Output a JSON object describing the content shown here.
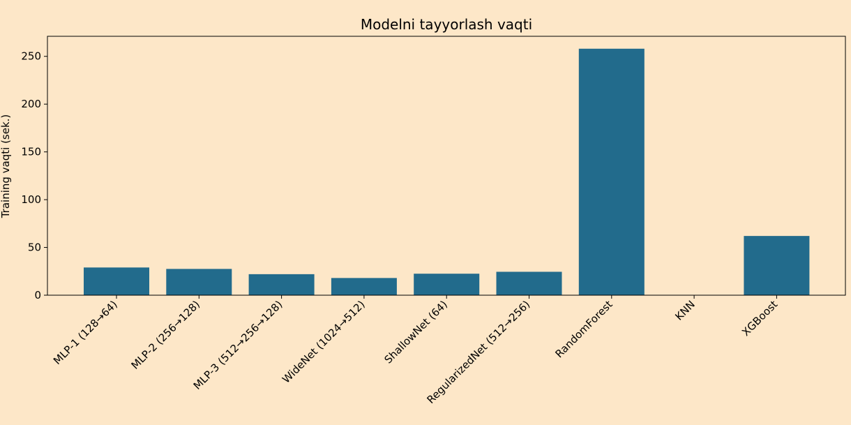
{
  "chart_data": {
    "type": "bar",
    "title": "Modelni tayyorlash vaqti",
    "xlabel": "",
    "ylabel": "Training vaqti (sek.)",
    "categories": [
      "MLP-1 (128→64)",
      "MLP-2 (256→128)",
      "MLP-3 (512→256→128)",
      "WideNet (1024→512)",
      "ShallowNet (64)",
      "RegularizedNet (512→256)",
      "RandomForest",
      "KNN",
      "XGBoost"
    ],
    "values": [
      29,
      27.5,
      22,
      18,
      22.5,
      24.5,
      258,
      0.3,
      62
    ],
    "ylim": [
      0,
      271
    ],
    "yticks": [
      0,
      50,
      100,
      150,
      200,
      250
    ],
    "grid": false,
    "bar_color": "#226b8c",
    "background": "#fde7c8"
  }
}
